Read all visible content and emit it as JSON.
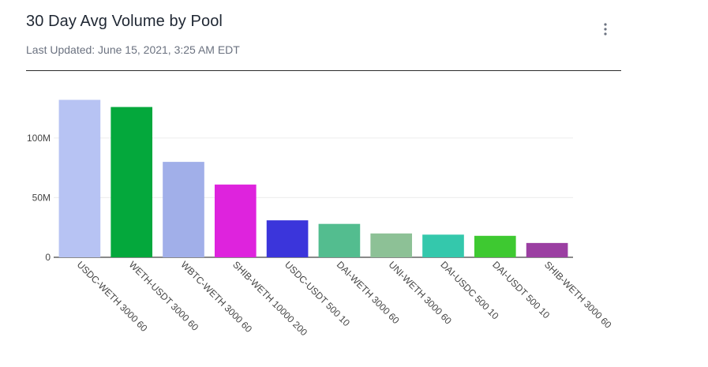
{
  "header": {
    "title": "30 Day Avg Volume by Pool",
    "last_updated": "Last Updated: June 15, 2021, 3:25 AM EDT",
    "menu_icon": "vertical-ellipsis-icon"
  },
  "chart_data": {
    "type": "bar",
    "title": "30 Day Avg Volume by Pool",
    "xlabel": "",
    "ylabel": "",
    "ylim": [
      0,
      133000000
    ],
    "yticks": [
      0,
      50000000,
      100000000
    ],
    "ytick_labels": [
      "0",
      "50M",
      "100M"
    ],
    "grid": true,
    "categories": [
      "USDC-WETH 3000 60",
      "WETH-USDT 3000 60",
      "WBTC-WETH 3000 60",
      "SHIB-WETH 10000 200",
      "USDC-USDT 500 10",
      "DAI-WETH 3000 60",
      "UNI-WETH 3000 60",
      "DAI-USDC 500 10",
      "DAI-USDT 500 10",
      "SHIB-WETH 3000 60"
    ],
    "values": [
      132000000,
      126000000,
      80000000,
      61000000,
      31000000,
      28000000,
      20000000,
      19000000,
      18000000,
      12000000
    ],
    "colors": [
      "#b7c3f3",
      "#04a83c",
      "#a1afe9",
      "#de23dd",
      "#3b35db",
      "#53bd8f",
      "#8dc196",
      "#34c8ac",
      "#3ec931",
      "#9b3fa2"
    ]
  }
}
